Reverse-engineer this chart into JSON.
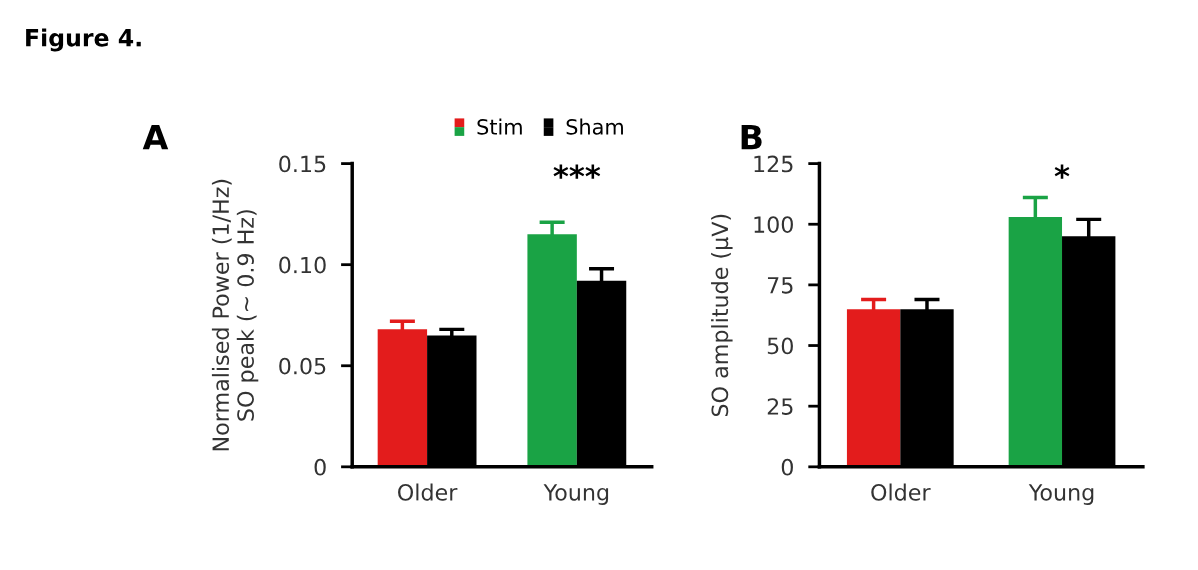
{
  "chart_data": [
    {
      "type": "bar",
      "title": "A",
      "ylabel": "Normalised Power (1/Hz)\nSO peak (~ 0.9 Hz)",
      "categories": [
        "Older",
        "Young"
      ],
      "series": [
        {
          "name": "Stim",
          "colors": [
            "#e31c1c",
            "#1aa345"
          ],
          "values": [
            0.068,
            0.115
          ],
          "errors": [
            0.004,
            0.006
          ]
        },
        {
          "name": "Sham",
          "color": "#000000",
          "values": [
            0.065,
            0.092
          ],
          "errors": [
            0.003,
            0.006
          ]
        }
      ],
      "ylim": [
        0,
        0.15
      ],
      "yticks": [
        {
          "value": 0,
          "label": "0"
        },
        {
          "value": 0.05,
          "label": "0.05"
        },
        {
          "value": 0.1,
          "label": "0.10"
        },
        {
          "value": 0.15,
          "label": "0.15"
        }
      ],
      "legend": "top",
      "grid": false,
      "annotations": [
        "Figure 4.",
        "***"
      ]
    },
    {
      "type": "bar",
      "title": "B",
      "ylabel": "SO amplitude (µV)",
      "categories": [
        "Older",
        "Young"
      ],
      "series": [
        {
          "colors": [
            "#e31c1c",
            "#1aa345"
          ],
          "values": [
            65,
            103
          ],
          "errors": [
            4,
            8
          ]
        },
        {
          "color": "#000000",
          "values": [
            65,
            95
          ],
          "errors": [
            4,
            7
          ]
        }
      ],
      "ylim": [
        0,
        125
      ],
      "yticks": [
        0,
        25,
        50,
        75,
        100,
        125
      ],
      "legend": false,
      "grid": false,
      "annotations": [
        "*"
      ]
    }
  ]
}
